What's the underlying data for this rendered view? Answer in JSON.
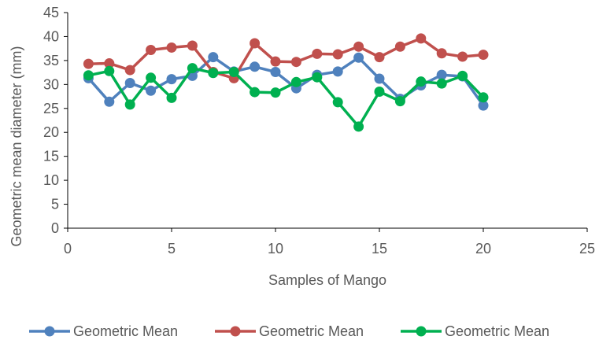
{
  "chart_data": {
    "type": "scatter",
    "title": "",
    "xlabel": "Samples of Mango",
    "ylabel": "Geometric mean diameter (mm)",
    "xlim": [
      0,
      25
    ],
    "ylim": [
      0,
      45
    ],
    "x_ticks": [
      0,
      5,
      10,
      15,
      20,
      25
    ],
    "y_ticks": [
      0,
      5,
      10,
      15,
      20,
      25,
      30,
      35,
      40,
      45
    ],
    "grid": false,
    "legend_position": "bottom",
    "series": [
      {
        "name": "Geometric Mean",
        "color": "#4f81bd",
        "x": [
          1,
          2,
          3,
          4,
          5,
          6,
          7,
          8,
          9,
          10,
          11,
          12,
          13,
          14,
          15,
          16,
          17,
          18,
          19,
          20
        ],
        "y": [
          31.3,
          26.4,
          30.3,
          28.7,
          31.1,
          31.8,
          35.7,
          32.7,
          33.7,
          32.6,
          29.2,
          32.0,
          32.7,
          35.6,
          31.2,
          27.0,
          29.8,
          32.0,
          31.7,
          25.6
        ]
      },
      {
        "name": "Geometric Mean",
        "color": "#c0504d",
        "x": [
          1,
          2,
          3,
          4,
          5,
          6,
          7,
          8,
          9,
          10,
          11,
          12,
          13,
          14,
          15,
          16,
          17,
          18,
          19,
          20
        ],
        "y": [
          34.3,
          34.4,
          33.0,
          37.2,
          37.7,
          38.1,
          32.6,
          31.3,
          38.6,
          34.8,
          34.7,
          36.4,
          36.3,
          37.9,
          35.7,
          37.9,
          39.6,
          36.5,
          35.8,
          36.2
        ]
      },
      {
        "name": "Geometric Mean",
        "color": "#00b050",
        "x": [
          1,
          2,
          3,
          4,
          5,
          6,
          7,
          8,
          9,
          10,
          11,
          12,
          13,
          14,
          15,
          16,
          17,
          18,
          19,
          20
        ],
        "y": [
          31.9,
          32.8,
          25.8,
          31.4,
          27.2,
          33.4,
          32.4,
          32.6,
          28.4,
          28.3,
          30.5,
          31.5,
          26.3,
          21.2,
          28.5,
          26.5,
          30.6,
          30.2,
          31.8,
          27.3
        ]
      }
    ]
  }
}
